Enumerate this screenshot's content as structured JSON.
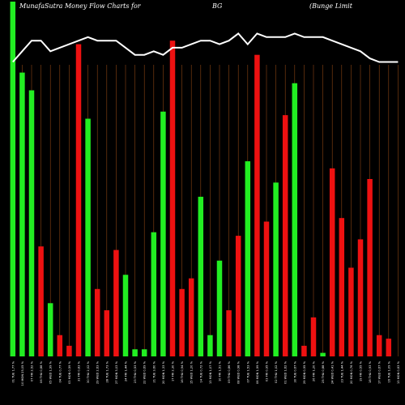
{
  "chart_data": {
    "type": "bar",
    "title_parts": [
      "MunafaSutra  Money Flow  Charts for",
      "BG",
      "(Bunge   Limit"
    ],
    "categories": [
      "01 TUE 1,77 %",
      "10 MON 25,05 %",
      "07 FRI 2,52 %",
      "06 THU 0,88 %",
      "05 WED 1,99 %",
      "04 TUE 0,77 %",
      "03 MON 0,59 %",
      "31 FRI 0,83 %",
      "30 THU 2,02 %",
      "29 WED 2,63 %",
      "28 TUE 1,73 %",
      "27 MON 3,03 %",
      "24 FRI 1,44 %",
      "23 THU 0,53 %",
      "22 WED 0,69 %",
      "21 TUE 3,60 %",
      "20 MON 1,33 %",
      "17 FRI 2,30 %",
      "16 THU 0,94 %",
      "15 WED 1,20 %",
      "14 TUE 0,72 %",
      "13 MON 1,07 %",
      "10 FRI 1,51 %",
      "09 THU 0,86 %",
      "08 WED 0,98 %",
      "07 TUE 1,53 %",
      "06 MON 1,99 %",
      "03 FRI 0,95 %",
      "02 THU 1,02 %",
      "01 WED 1,62 %",
      "30 TUE 0,67 %",
      "29 MON 0,95 %",
      "26 FRI 1,20 %",
      "25 THU 0,88 %",
      "24 WED 0,41 %",
      "23 TUE 1,44 %",
      "20 MON 0,76 %",
      "19 FRI 0,55 %",
      "18 THU 0,93 %",
      "17 WED 0,67 %",
      "16 TUE 1,09 %",
      "13 MON 0,63 %"
    ],
    "values": [
      100,
      80,
      75,
      31,
      15,
      6,
      3,
      88,
      67,
      19,
      13,
      30,
      23,
      2,
      2,
      35,
      69,
      89,
      19,
      22,
      45,
      6,
      27,
      13,
      34,
      55,
      85,
      38,
      49,
      68,
      77,
      3,
      11,
      1,
      53,
      39,
      25,
      33,
      50,
      6,
      5,
      0
    ],
    "flow": [
      "in",
      "in",
      "in",
      "out",
      "in",
      "out",
      "out",
      "out",
      "in",
      "out",
      "out",
      "out",
      "in",
      "in",
      "in",
      "in",
      "in",
      "out",
      "out",
      "out",
      "in",
      "in",
      "in",
      "out",
      "out",
      "in",
      "out",
      "out",
      "in",
      "out",
      "in",
      "out",
      "out",
      "in",
      "out",
      "out",
      "out",
      "out",
      "out",
      "out",
      "out",
      "out"
    ],
    "line": [
      83,
      86,
      89,
      89,
      86,
      87,
      88,
      89,
      90,
      89,
      89,
      89,
      87,
      85,
      85,
      86,
      85,
      87,
      87,
      88,
      89,
      89,
      88,
      89,
      91,
      88,
      91,
      90,
      90,
      90,
      91,
      90,
      90,
      90,
      89,
      88,
      87,
      86,
      84,
      83,
      83,
      83
    ],
    "colors": {
      "in": "#22ee22",
      "out": "#ee1111",
      "line": "#ffffff",
      "grid": "#8b4513",
      "background": "#000000"
    },
    "grid": true,
    "ylim": [
      0,
      100
    ]
  }
}
